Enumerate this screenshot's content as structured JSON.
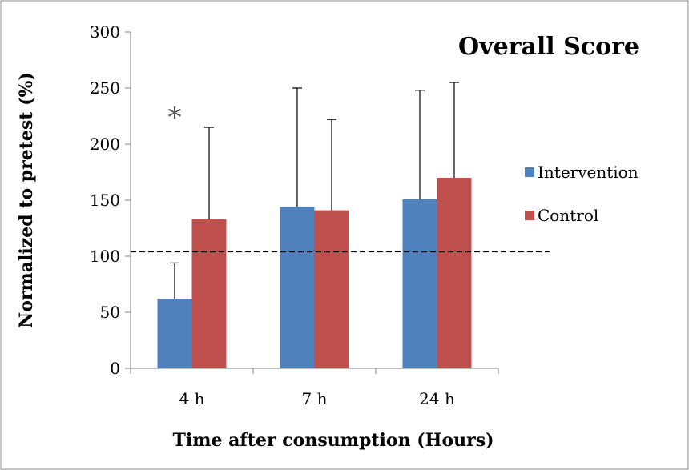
{
  "chart_data": {
    "type": "bar",
    "title": "Overall Score",
    "xlabel": "Time after consumption (Hours)",
    "ylabel": "Normalized to pretest (%)",
    "categories": [
      "4 h",
      "7 h",
      "24 h"
    ],
    "ylim": [
      0,
      300
    ],
    "yticks": [
      0,
      50,
      100,
      150,
      200,
      250,
      300
    ],
    "series": [
      {
        "name": "Intervention",
        "color": "#4f81bd",
        "values": [
          62,
          144,
          151
        ],
        "error_upper": [
          94,
          250,
          248
        ]
      },
      {
        "name": "Control",
        "color": "#c0504d",
        "values": [
          133,
          141,
          170
        ],
        "error_upper": [
          215,
          222,
          255
        ]
      }
    ],
    "reference_line": {
      "y": 104,
      "style": "dashed"
    },
    "annotations": [
      {
        "text": "*",
        "category": "4 h"
      }
    ],
    "legend": "right",
    "grid": false
  }
}
